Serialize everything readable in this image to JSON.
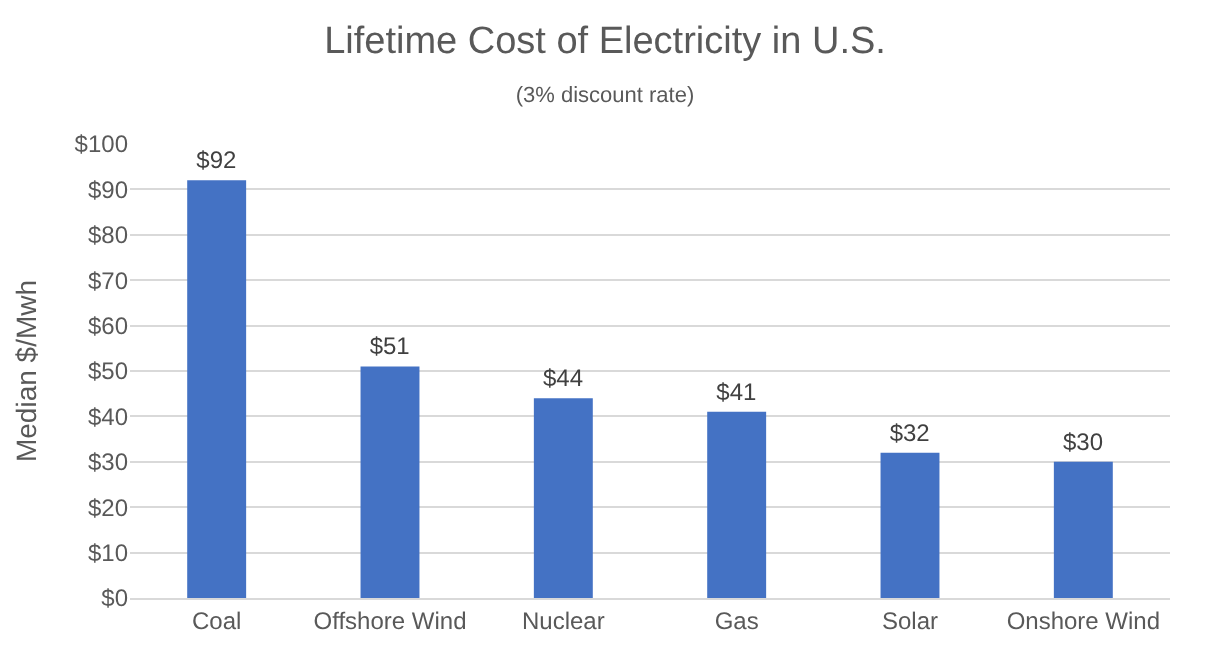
{
  "chart_data": {
    "type": "bar",
    "title": "Lifetime Cost of Electricity in U.S.",
    "subtitle": "(3% discount rate)",
    "ylabel": "Median $/Mwh",
    "categories": [
      "Coal",
      "Offshore Wind",
      "Nuclear",
      "Gas",
      "Solar",
      "Onshore Wind"
    ],
    "values": [
      92,
      51,
      44,
      41,
      32,
      30
    ],
    "value_labels": [
      "$92",
      "$51",
      "$44",
      "$41",
      "$32",
      "$30"
    ],
    "color": "#4472c4",
    "ylim": [
      0,
      100
    ],
    "yticks": [
      {
        "value": 0,
        "label": "$0"
      },
      {
        "value": 10,
        "label": "$10"
      },
      {
        "value": 20,
        "label": "$20"
      },
      {
        "value": 30,
        "label": "$30"
      },
      {
        "value": 40,
        "label": "$40"
      },
      {
        "value": 50,
        "label": "$50"
      },
      {
        "value": 60,
        "label": "$60"
      },
      {
        "value": 70,
        "label": "$70"
      },
      {
        "value": 80,
        "label": "$80"
      },
      {
        "value": 90,
        "label": "$90"
      },
      {
        "value": 100,
        "label": "$100"
      }
    ],
    "grid": "y"
  }
}
